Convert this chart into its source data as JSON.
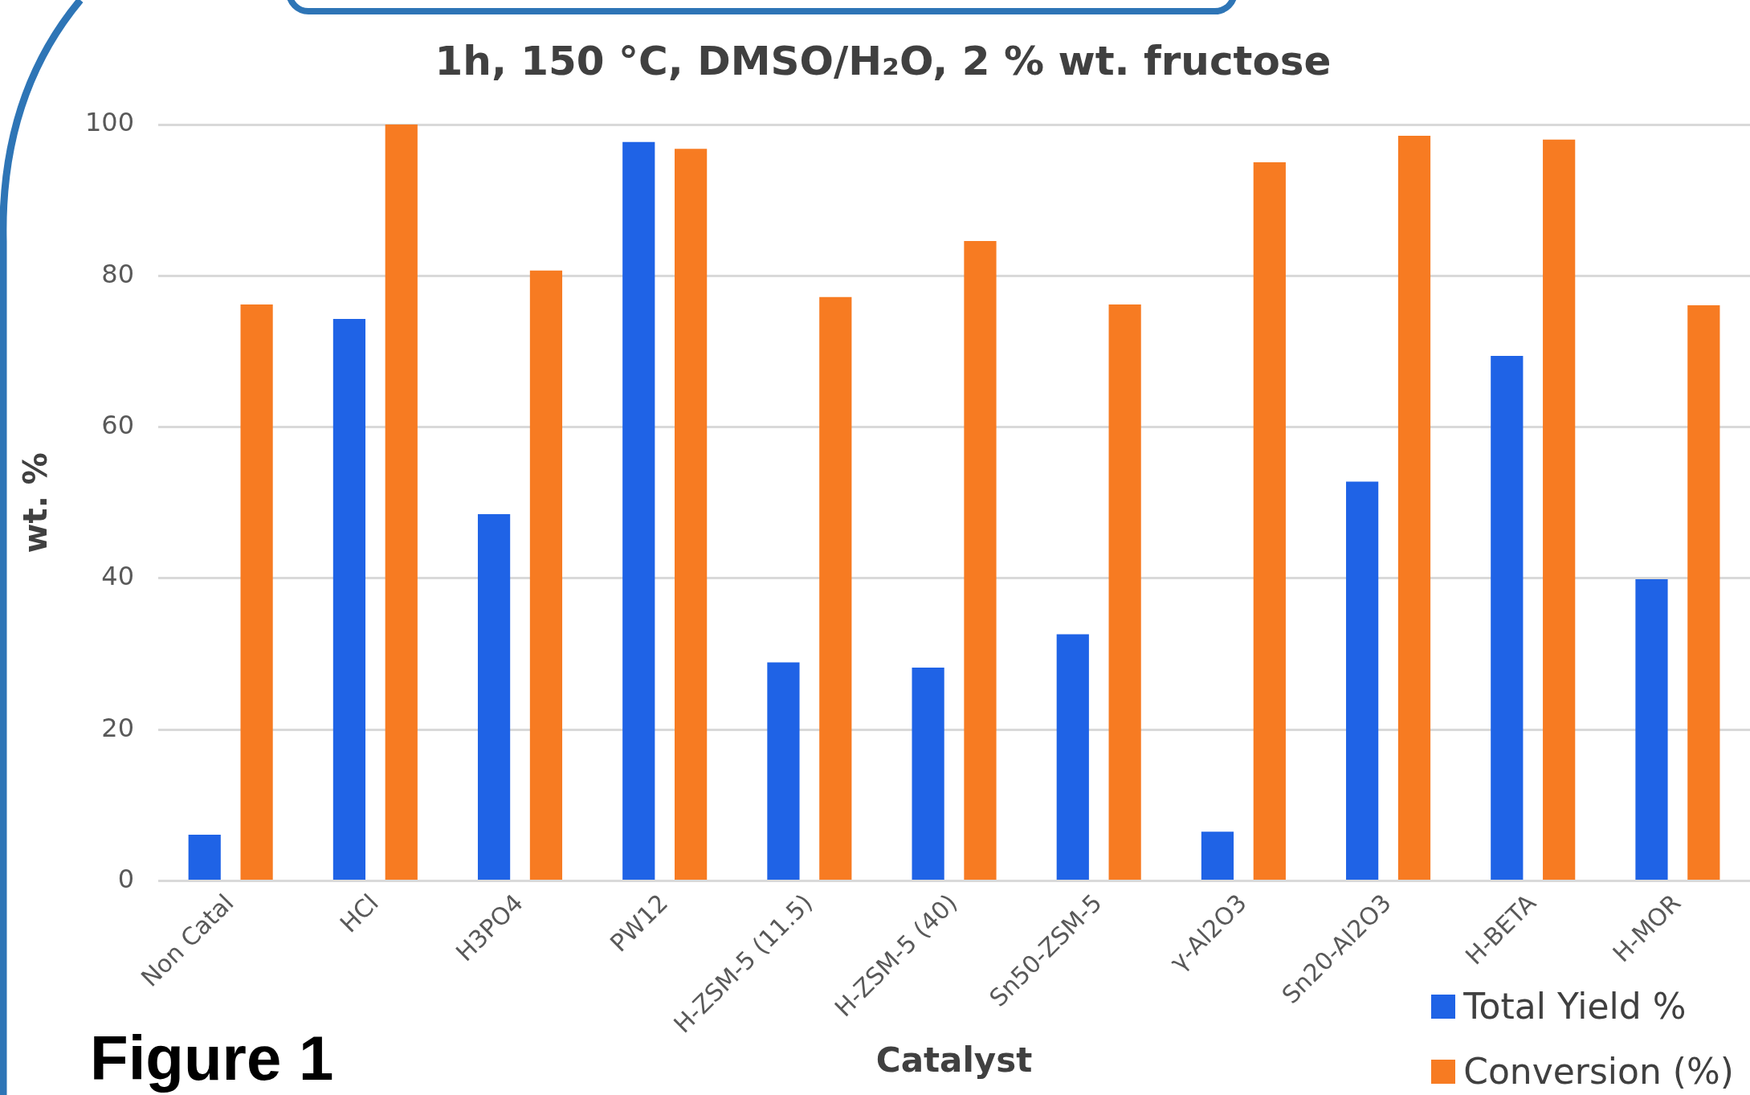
{
  "chart_data": {
    "type": "bar",
    "title": "1h, 150 °C, DMSO/H₂O, 2 % wt. fructose",
    "xlabel": "Catalyst",
    "ylabel": "wt. %",
    "categories": [
      "Non Catal",
      "HCl",
      "H3PO4",
      "PW12",
      "H-ZSM-5 (11.5)",
      "H-ZSM-5 (40)",
      "Sn50-ZSM-5",
      "γ-Al2O3",
      "Sn20-Al2O3",
      "H-BETA",
      "H-MOR"
    ],
    "series": [
      {
        "name": "Total Yield %",
        "color": "#1f63e6",
        "values": [
          6.1,
          74.3,
          48.5,
          97.7,
          28.9,
          28.2,
          32.6,
          6.5,
          52.8,
          69.4,
          39.9
        ]
      },
      {
        "name": "Conversion (%)",
        "color": "#f77b22",
        "values": [
          76.2,
          100,
          80.7,
          96.8,
          77.2,
          84.6,
          76.2,
          95,
          98.5,
          98,
          76.1
        ]
      }
    ],
    "ylim": [
      0,
      100
    ],
    "yticks": [
      0,
      20,
      40,
      60,
      80,
      100
    ],
    "grid": "y",
    "legend": "bottom right",
    "annotations": [
      "Figure 1"
    ]
  }
}
